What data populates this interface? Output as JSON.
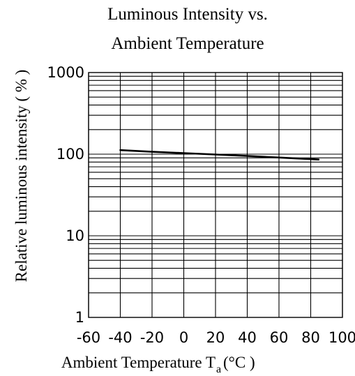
{
  "chart_data": {
    "type": "line",
    "title_line1": "Luminous Intensity vs.",
    "title_line2": "Ambient Temperature",
    "ylabel": "Relative luminous intensity ( % )",
    "xlabel_main": "Ambient Temperature T",
    "xlabel_sub": "a",
    "xlabel_unit": "(°C )",
    "x_ticks": [
      "-60",
      "-40",
      "-20",
      "0",
      "20",
      "40",
      "60",
      "80",
      "100"
    ],
    "y_ticks": [
      "1000",
      "100",
      "10",
      "1"
    ],
    "xlim": [
      -60,
      100
    ],
    "ylim": [
      1,
      1000
    ],
    "y_scale": "log",
    "grid": true,
    "series": [
      {
        "x": [
          -40,
          -20,
          0,
          20,
          40,
          60,
          85
        ],
        "y": [
          112,
          107,
          103,
          99,
          95,
          91,
          86
        ]
      }
    ]
  }
}
